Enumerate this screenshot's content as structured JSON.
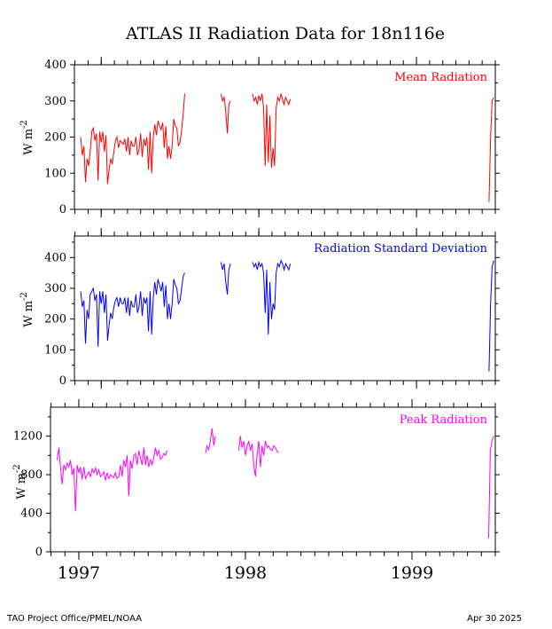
{
  "page": {
    "title": "ATLAS II Radiation Data for 18n116e",
    "footer_left": "TAO Project Office/PMEL/NOAA",
    "footer_right": "Apr 30 2025"
  },
  "chart_data": [
    {
      "type": "line",
      "title": "Mean Radiation",
      "ylabel": "W m-2",
      "ylabel_base": "W m",
      "ylabel_exp": "-2",
      "color": "#ff0000",
      "ylim": [
        0,
        400
      ],
      "yticks": [
        0,
        100,
        200,
        300,
        400
      ],
      "xlim": [
        1996.83,
        1999.5
      ],
      "grid": false,
      "legend": "top-right",
      "series": [
        {
          "x": [
            1996.87,
            1996.88,
            1996.89,
            1996.9,
            1996.91,
            1996.92,
            1996.93,
            1996.94,
            1996.95,
            1996.96,
            1996.97,
            1996.98,
            1996.99,
            1997.0,
            1997.01,
            1997.02,
            1997.03,
            1997.04,
            1997.05,
            1997.06,
            1997.07,
            1997.08,
            1997.09,
            1997.1,
            1997.11,
            1997.12,
            1997.13,
            1997.14,
            1997.15,
            1997.16,
            1997.17,
            1997.18,
            1997.19,
            1997.2,
            1997.21,
            1997.22,
            1997.23,
            1997.24,
            1997.25,
            1997.26,
            1997.27,
            1997.28,
            1997.29,
            1997.3,
            1997.31,
            1997.32,
            1997.33,
            1997.34,
            1997.35,
            1997.36,
            1997.37,
            1997.38,
            1997.39,
            1997.4,
            1997.41,
            1997.42,
            1997.43,
            1997.44,
            1997.45,
            1997.46,
            1997.47,
            1997.48,
            1997.49,
            1997.5,
            1997.51,
            1997.52,
            1997.53
          ],
          "y": [
            200,
            150,
            175,
            75,
            140,
            120,
            160,
            215,
            225,
            190,
            210,
            80,
            215,
            185,
            215,
            160,
            205,
            70,
            110,
            140,
            125,
            160,
            190,
            200,
            170,
            190,
            185,
            180,
            195,
            160,
            200,
            150,
            190,
            175,
            175,
            200,
            150,
            165,
            210,
            145,
            195,
            175,
            200,
            110,
            215,
            100,
            200,
            235,
            205,
            245,
            230,
            220,
            240,
            170,
            230,
            140,
            175,
            140,
            175,
            250,
            230,
            225,
            175,
            185,
            220,
            265,
            320
          ]
        },
        {
          "x": [
            1997.76,
            1997.77,
            1997.78,
            1997.79,
            1997.8,
            1997.81,
            1997.82
          ],
          "y": [
            320,
            300,
            310,
            270,
            210,
            290,
            300
          ]
        },
        {
          "x": [
            1997.96,
            1997.97,
            1997.98,
            1997.99,
            1998.0,
            1998.01,
            1998.02,
            1998.03,
            1998.04,
            1998.05,
            1998.06,
            1998.07,
            1998.08,
            1998.09,
            1998.1,
            1998.11,
            1998.12,
            1998.13,
            1998.14,
            1998.15,
            1998.16,
            1998.17,
            1998.18,
            1998.19,
            1998.2
          ],
          "y": [
            320,
            300,
            310,
            290,
            315,
            300,
            320,
            280,
            120,
            290,
            130,
            260,
            115,
            170,
            120,
            280,
            310,
            300,
            320,
            305,
            290,
            310,
            300,
            290,
            305
          ]
        },
        {
          "x": [
            1999.46,
            1999.47,
            1999.48,
            1999.49
          ],
          "y": [
            20,
            200,
            300,
            310
          ]
        }
      ]
    },
    {
      "type": "line",
      "title": "Radiation Standard Deviation",
      "ylabel": "W m-2",
      "ylabel_base": "W m",
      "ylabel_exp": "-2",
      "color": "#0000ff",
      "ylim": [
        0,
        470
      ],
      "yticks": [
        0,
        100,
        200,
        300,
        400
      ],
      "xlim": [
        1996.83,
        1999.5
      ],
      "grid": false,
      "legend": "top-right",
      "series": [
        {
          "x": [
            1996.87,
            1996.88,
            1996.89,
            1996.9,
            1996.91,
            1996.92,
            1996.93,
            1996.94,
            1996.95,
            1996.96,
            1996.97,
            1996.98,
            1996.99,
            1997.0,
            1997.01,
            1997.02,
            1997.03,
            1997.04,
            1997.05,
            1997.06,
            1997.07,
            1997.08,
            1997.09,
            1997.1,
            1997.11,
            1997.12,
            1997.13,
            1997.14,
            1997.15,
            1997.16,
            1997.17,
            1997.18,
            1997.19,
            1997.2,
            1997.21,
            1997.22,
            1997.23,
            1997.24,
            1997.25,
            1997.26,
            1997.27,
            1997.28,
            1997.29,
            1997.3,
            1997.31,
            1997.32,
            1997.33,
            1997.34,
            1997.35,
            1997.36,
            1997.37,
            1997.38,
            1997.39,
            1997.4,
            1997.41,
            1997.42,
            1997.43,
            1997.44,
            1997.45,
            1997.46,
            1997.47,
            1997.48,
            1997.49,
            1997.5,
            1997.51,
            1997.52,
            1997.53
          ],
          "y": [
            290,
            240,
            260,
            120,
            230,
            200,
            280,
            290,
            300,
            260,
            280,
            110,
            290,
            250,
            290,
            220,
            280,
            130,
            180,
            220,
            200,
            240,
            260,
            270,
            240,
            270,
            250,
            250,
            270,
            220,
            270,
            210,
            260,
            240,
            240,
            280,
            220,
            240,
            290,
            210,
            270,
            250,
            270,
            160,
            290,
            150,
            270,
            320,
            280,
            330,
            310,
            290,
            320,
            240,
            310,
            200,
            250,
            200,
            250,
            330,
            310,
            300,
            250,
            260,
            300,
            340,
            350
          ]
        },
        {
          "x": [
            1997.76,
            1997.77,
            1997.78,
            1997.79,
            1997.8,
            1997.81,
            1997.82
          ],
          "y": [
            385,
            360,
            380,
            320,
            280,
            360,
            380
          ]
        },
        {
          "x": [
            1997.96,
            1997.97,
            1997.98,
            1997.99,
            1998.0,
            1998.01,
            1998.02,
            1998.03,
            1998.04,
            1998.05,
            1998.06,
            1998.07,
            1998.08,
            1998.09,
            1998.1,
            1998.11,
            1998.12,
            1998.13,
            1998.14,
            1998.15,
            1998.16,
            1998.17,
            1998.18,
            1998.19,
            1998.2
          ],
          "y": [
            385,
            370,
            380,
            360,
            385,
            370,
            380,
            350,
            220,
            360,
            150,
            320,
            200,
            250,
            230,
            350,
            380,
            370,
            390,
            380,
            360,
            380,
            370,
            360,
            380
          ]
        },
        {
          "x": [
            1999.46,
            1999.47,
            1999.48,
            1999.49
          ],
          "y": [
            30,
            250,
            370,
            390
          ]
        }
      ]
    },
    {
      "type": "line",
      "title": "Peak Radiation",
      "ylabel": "W m-2",
      "ylabel_base": "W m",
      "ylabel_exp": "-2",
      "color": "#ff00ff",
      "ylim": [
        0,
        1500
      ],
      "yticks": [
        0,
        400,
        800,
        1200
      ],
      "xlim": [
        1996.83,
        1999.5
      ],
      "grid": false,
      "legend": "top-right",
      "series": [
        {
          "x": [
            1996.87,
            1996.88,
            1996.89,
            1996.9,
            1996.91,
            1996.92,
            1996.93,
            1996.94,
            1996.95,
            1996.96,
            1996.97,
            1996.98,
            1996.99,
            1997.0,
            1997.01,
            1997.02,
            1997.03,
            1997.04,
            1997.05,
            1997.06,
            1997.07,
            1997.08,
            1997.09,
            1997.1,
            1997.11,
            1997.12,
            1997.13,
            1997.14,
            1997.15,
            1997.16,
            1997.17,
            1997.18,
            1997.19,
            1997.2,
            1997.21,
            1997.22,
            1997.23,
            1997.24,
            1997.25,
            1997.26,
            1997.27,
            1997.28,
            1997.29,
            1997.3,
            1997.31,
            1997.32,
            1997.33,
            1997.34,
            1997.35,
            1997.36,
            1997.37,
            1997.38,
            1997.39,
            1997.4,
            1997.41,
            1997.42,
            1997.43,
            1997.44,
            1997.45,
            1997.46,
            1997.47,
            1997.48,
            1997.49,
            1997.5,
            1997.51,
            1997.52,
            1997.53
          ],
          "y": [
            950,
            1080,
            880,
            700,
            900,
            850,
            920,
            880,
            950,
            800,
            870,
            420,
            900,
            820,
            880,
            750,
            880,
            760,
            800,
            830,
            780,
            860,
            820,
            870,
            800,
            850,
            780,
            800,
            830,
            740,
            820,
            760,
            800,
            780,
            770,
            820,
            760,
            780,
            900,
            780,
            950,
            880,
            1000,
            580,
            950,
            860,
            1000,
            1020,
            900,
            1050,
            980,
            900,
            1080,
            900,
            1000,
            880,
            960,
            900,
            980,
            1080,
            1000,
            1050,
            960,
            980,
            1020,
            1000,
            1050
          ]
        },
        {
          "x": [
            1997.76,
            1997.77,
            1997.78,
            1997.79,
            1997.8,
            1997.81,
            1997.82
          ],
          "y": [
            1020,
            1100,
            1060,
            1150,
            1280,
            1100,
            1200
          ]
        },
        {
          "x": [
            1997.96,
            1997.97,
            1997.98,
            1997.99,
            1998.0,
            1998.01,
            1998.02,
            1998.03,
            1998.04,
            1998.05,
            1998.06,
            1998.07,
            1998.08,
            1998.09,
            1998.1,
            1998.11,
            1998.12,
            1998.13,
            1998.14,
            1998.15,
            1998.16,
            1998.17,
            1998.18,
            1998.19,
            1998.2
          ],
          "y": [
            1050,
            1200,
            1080,
            1150,
            1000,
            1100,
            1150,
            1050,
            1120,
            900,
            780,
            1000,
            1150,
            880,
            1100,
            1000,
            1150,
            1080,
            1100,
            1060,
            1050,
            1100,
            1080,
            1040,
            1030
          ]
        },
        {
          "x": [
            1999.46,
            1999.47,
            1999.48,
            1999.49
          ],
          "y": [
            140,
            1050,
            1150,
            1200
          ]
        }
      ]
    }
  ],
  "x_axis": {
    "years": [
      {
        "label": "1997",
        "value": 1997.0
      },
      {
        "label": "1998",
        "value": 1998.0
      },
      {
        "label": "1999",
        "value": 1999.0
      }
    ],
    "minor_start": 1996.8333,
    "minor_step": 0.0833333
  }
}
